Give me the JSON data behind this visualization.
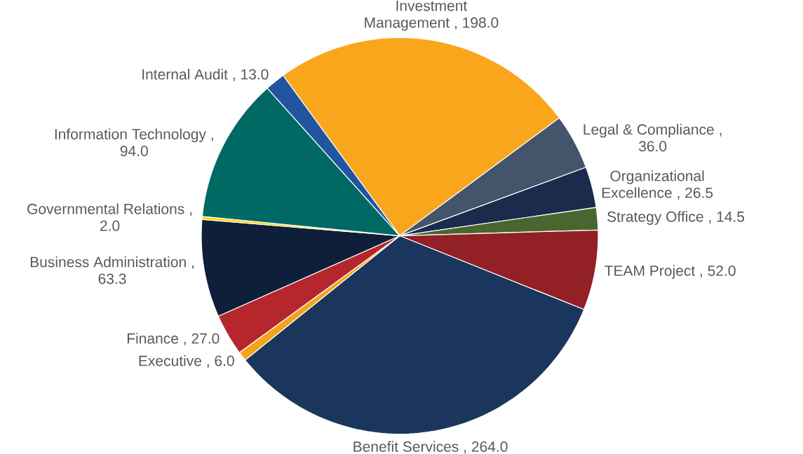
{
  "chart_data": {
    "type": "pie",
    "categories": [
      "Investment Management",
      "Legal & Compliance",
      "Organizational Excellence",
      "Strategy Office",
      "TEAM Project",
      "Benefit Services",
      "Executive",
      "Finance",
      "Business Administration",
      "Governmental Relations",
      "Information Technology",
      "Internal Audit"
    ],
    "values": [
      198.0,
      36.0,
      26.5,
      14.5,
      52.0,
      264.0,
      6.0,
      27.0,
      63.3,
      2.0,
      94.0,
      13.0
    ],
    "colors": [
      "#f9a61d",
      "#44546a",
      "#1a2b4c",
      "#4a6630",
      "#922025",
      "#1b365d",
      "#f5a31a",
      "#b5272d",
      "#0f1f3a",
      "#ffd700",
      "#006964",
      "#2255a0"
    ],
    "value_labels": [
      ", 198.0",
      ", 36.0",
      ", 26.5",
      ", 14.5",
      ", 52.0",
      ", 264.0",
      ", 6.0",
      ", 27.0",
      ", 63.3",
      ", 2.0",
      ", 94.0",
      ", 13.0"
    ]
  }
}
